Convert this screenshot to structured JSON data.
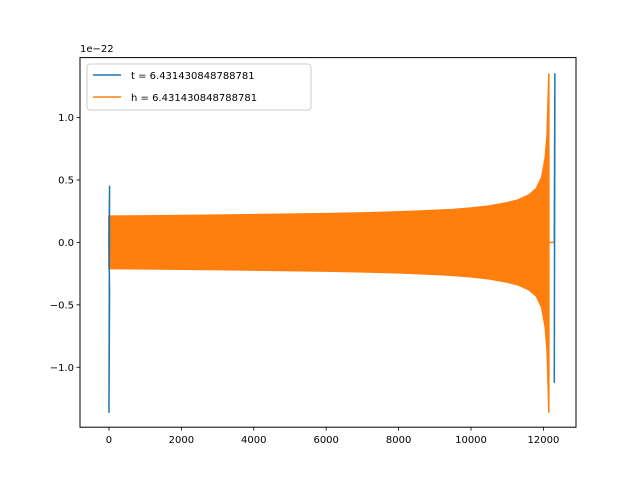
{
  "chart_data": {
    "type": "line",
    "title": "",
    "xlabel": "",
    "ylabel": "",
    "y_offset_label": "1e−22",
    "xlim": [
      -800,
      12900
    ],
    "ylim": [
      -1.48,
      1.48
    ],
    "x_ticks": [
      0,
      2000,
      4000,
      6000,
      8000,
      10000,
      12000
    ],
    "x_tick_labels": [
      "0",
      "2000",
      "4000",
      "6000",
      "8000",
      "10000",
      "12000"
    ],
    "y_ticks": [
      -1.0,
      -0.5,
      0.0,
      0.5,
      1.0
    ],
    "y_tick_labels": [
      "−1.0",
      "−0.5",
      "0.0",
      "0.5",
      "1.0"
    ],
    "grid": false,
    "legend_position": "upper-left",
    "series": [
      {
        "name": "t = 6.431430848788781",
        "color": "#1f77b4",
        "description_points": {
          "start_spike": [
            [
              0,
              0.0
            ],
            [
              0,
              0.45
            ],
            [
              0,
              -1.36
            ],
            [
              0,
              -0.4
            ],
            [
              0,
              0.0
            ]
          ],
          "end_spike": [
            [
              12300,
              0.0
            ],
            [
              12300,
              1.35
            ],
            [
              12300,
              -1.12
            ],
            [
              12300,
              1.18
            ],
            [
              12300,
              0.0
            ]
          ]
        }
      },
      {
        "name": "h = 6.431430848788781",
        "color": "#ff7f0e",
        "envelope": {
          "x": [
            0,
            1000,
            2000,
            3000,
            4000,
            5000,
            6000,
            7000,
            8000,
            9000,
            9500,
            10000,
            10500,
            11000,
            11300,
            11600,
            11800,
            11950,
            12050,
            12100,
            12150
          ],
          "upper": [
            0.21,
            0.212,
            0.215,
            0.218,
            0.222,
            0.226,
            0.23,
            0.236,
            0.244,
            0.256,
            0.264,
            0.276,
            0.292,
            0.318,
            0.34,
            0.38,
            0.43,
            0.52,
            0.68,
            0.86,
            1.35
          ],
          "lower": [
            -0.21,
            -0.212,
            -0.215,
            -0.218,
            -0.222,
            -0.226,
            -0.23,
            -0.236,
            -0.244,
            -0.256,
            -0.264,
            -0.276,
            -0.292,
            -0.318,
            -0.34,
            -0.38,
            -0.43,
            -0.52,
            -0.68,
            -0.86,
            -1.36
          ]
        },
        "tail": [
          [
            12150,
            0.0
          ],
          [
            12300,
            0.0
          ]
        ]
      }
    ]
  }
}
